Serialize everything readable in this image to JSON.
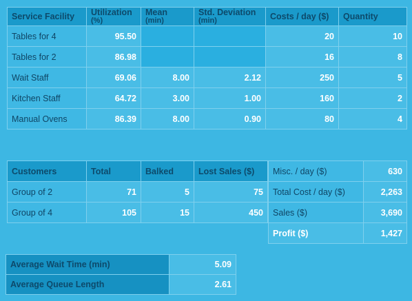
{
  "facility_table": {
    "headers": {
      "facility": "Service Facility",
      "utilization_1": "Utilization",
      "utilization_2": "(%)",
      "mean_1": "Mean",
      "mean_2": "(min)",
      "std_1": "Std. Deviation",
      "std_2": "(min)",
      "costs": "Costs / day ($)",
      "quantity": "Quantity"
    },
    "rows": [
      {
        "name": "Tables for 4",
        "utilization": "95.50",
        "mean": "",
        "std": "",
        "cost": "20",
        "quantity": "10"
      },
      {
        "name": "Tables for 2",
        "utilization": "86.98",
        "mean": "",
        "std": "",
        "cost": "16",
        "quantity": "8"
      },
      {
        "name": "Wait Staff",
        "utilization": "69.06",
        "mean": "8.00",
        "std": "2.12",
        "cost": "250",
        "quantity": "5"
      },
      {
        "name": "Kitchen Staff",
        "utilization": "64.72",
        "mean": "3.00",
        "std": "1.00",
        "cost": "160",
        "quantity": "2"
      },
      {
        "name": "Manual Ovens",
        "utilization": "86.39",
        "mean": "8.00",
        "std": "0.90",
        "cost": "80",
        "quantity": "4"
      }
    ]
  },
  "customers_table": {
    "headers": {
      "customers": "Customers",
      "total": "Total",
      "balked": "Balked",
      "lost_sales": "Lost Sales ($)"
    },
    "rows": [
      {
        "name": "Group of 2",
        "total": "71",
        "balked": "5",
        "lost": "75"
      },
      {
        "name": "Group of 4",
        "total": "105",
        "balked": "15",
        "lost": "450"
      }
    ]
  },
  "summary_table": {
    "rows": [
      {
        "label": "Misc. / day ($)",
        "value": "630"
      },
      {
        "label": "Total Cost / day ($)",
        "value": "2,263"
      },
      {
        "label": "Sales ($)",
        "value": "3,690"
      },
      {
        "label": "Profit ($)",
        "value": "1,427"
      }
    ]
  },
  "averages_table": {
    "rows": [
      {
        "label": "Average Wait Time (min)",
        "value": "5.09"
      },
      {
        "label": "Average Queue Length",
        "value": "2.61"
      }
    ]
  }
}
